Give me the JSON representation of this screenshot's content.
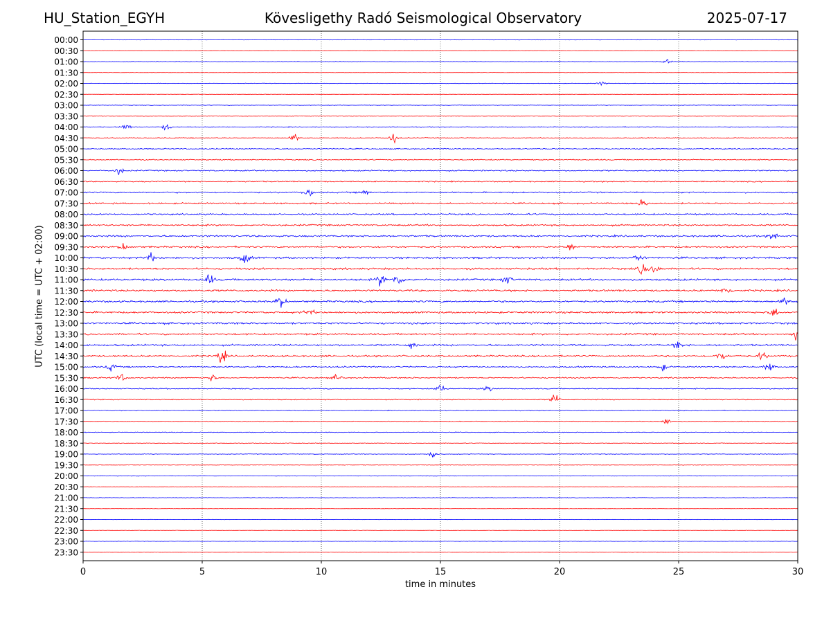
{
  "header": {
    "station": "HU_Station_EGYH",
    "title": "Kövesligethy Radó Seismological Observatory",
    "date": "2025-07-17"
  },
  "colors": {
    "even_row": "#0000ff",
    "odd_row": "#ff0000",
    "axis": "#000000"
  },
  "chart_data": {
    "type": "line",
    "title": "Kövesligethy Radó Seismological Observatory",
    "xlabel": "time in minutes",
    "ylabel": "UTC (local time = UTC + 02:00)",
    "xlim": [
      0,
      30
    ],
    "xticks": [
      0,
      5,
      10,
      15,
      20,
      25,
      30
    ],
    "grid": "vertical dotted at x = 5, 10, 15, 20, 25",
    "rows": [
      "00:00",
      "00:30",
      "01:00",
      "01:30",
      "02:00",
      "02:30",
      "03:00",
      "03:30",
      "04:00",
      "04:30",
      "05:00",
      "05:30",
      "06:00",
      "06:30",
      "07:00",
      "07:30",
      "08:00",
      "08:30",
      "09:00",
      "09:30",
      "10:00",
      "10:30",
      "11:00",
      "11:30",
      "12:00",
      "12:30",
      "13:00",
      "13:30",
      "14:00",
      "14:30",
      "15:00",
      "15:30",
      "16:00",
      "16:30",
      "17:00",
      "17:30",
      "18:00",
      "18:30",
      "19:00",
      "19:30",
      "20:00",
      "20:30",
      "21:00",
      "21:30",
      "22:00",
      "22:30",
      "23:00",
      "23:30"
    ],
    "noise_level": [
      0.15,
      0.15,
      0.2,
      0.15,
      0.2,
      0.15,
      0.2,
      0.25,
      0.35,
      0.35,
      0.45,
      0.45,
      0.55,
      0.5,
      0.6,
      0.65,
      0.65,
      0.7,
      0.75,
      0.75,
      0.8,
      0.8,
      0.8,
      0.8,
      0.8,
      0.8,
      0.8,
      0.75,
      0.75,
      0.7,
      0.6,
      0.55,
      0.45,
      0.4,
      0.35,
      0.3,
      0.3,
      0.25,
      0.25,
      0.2,
      0.2,
      0.2,
      0.2,
      0.15,
      0.15,
      0.15,
      0.15,
      0.15
    ],
    "events": [
      {
        "row": "01:00",
        "x": 24.5,
        "amp": 1.2
      },
      {
        "row": "02:00",
        "x": 21.8,
        "amp": 1.2
      },
      {
        "row": "04:00",
        "x": 1.8,
        "amp": 1.5
      },
      {
        "row": "04:00",
        "x": 3.5,
        "amp": 1.5
      },
      {
        "row": "04:30",
        "x": 8.9,
        "amp": 2.0
      },
      {
        "row": "04:30",
        "x": 13.0,
        "amp": 3.0
      },
      {
        "row": "06:00",
        "x": 1.5,
        "amp": 2.0
      },
      {
        "row": "07:00",
        "x": 9.5,
        "amp": 1.8
      },
      {
        "row": "07:00",
        "x": 11.8,
        "amp": 1.6
      },
      {
        "row": "07:30",
        "x": 23.5,
        "amp": 2.0
      },
      {
        "row": "09:00",
        "x": 29.0,
        "amp": 2.0
      },
      {
        "row": "09:30",
        "x": 1.7,
        "amp": 1.8
      },
      {
        "row": "09:30",
        "x": 20.5,
        "amp": 2.0
      },
      {
        "row": "10:00",
        "x": 2.8,
        "amp": 2.5
      },
      {
        "row": "10:00",
        "x": 6.8,
        "amp": 3.0
      },
      {
        "row": "10:00",
        "x": 23.3,
        "amp": 2.0
      },
      {
        "row": "10:30",
        "x": 23.5,
        "amp": 3.0
      },
      {
        "row": "10:30",
        "x": 24.0,
        "amp": 2.5
      },
      {
        "row": "11:00",
        "x": 5.3,
        "amp": 3.0
      },
      {
        "row": "11:00",
        "x": 12.5,
        "amp": 3.0
      },
      {
        "row": "11:00",
        "x": 13.2,
        "amp": 3.0
      },
      {
        "row": "11:00",
        "x": 17.8,
        "amp": 2.0
      },
      {
        "row": "11:30",
        "x": 27.0,
        "amp": 2.5
      },
      {
        "row": "12:00",
        "x": 8.3,
        "amp": 3.0
      },
      {
        "row": "12:00",
        "x": 29.5,
        "amp": 2.0
      },
      {
        "row": "12:30",
        "x": 9.5,
        "amp": 2.0
      },
      {
        "row": "12:30",
        "x": 29.0,
        "amp": 2.5
      },
      {
        "row": "13:30",
        "x": 29.9,
        "amp": 2.5
      },
      {
        "row": "14:00",
        "x": 13.8,
        "amp": 2.0
      },
      {
        "row": "14:00",
        "x": 25.0,
        "amp": 2.5
      },
      {
        "row": "14:30",
        "x": 5.8,
        "amp": 4.0
      },
      {
        "row": "14:30",
        "x": 26.8,
        "amp": 2.5
      },
      {
        "row": "14:30",
        "x": 28.5,
        "amp": 2.0
      },
      {
        "row": "15:00",
        "x": 1.2,
        "amp": 2.0
      },
      {
        "row": "15:00",
        "x": 24.3,
        "amp": 2.0
      },
      {
        "row": "15:00",
        "x": 28.8,
        "amp": 2.0
      },
      {
        "row": "15:30",
        "x": 1.6,
        "amp": 2.0
      },
      {
        "row": "15:30",
        "x": 5.4,
        "amp": 2.0
      },
      {
        "row": "15:30",
        "x": 10.7,
        "amp": 2.0
      },
      {
        "row": "16:00",
        "x": 15.0,
        "amp": 2.0
      },
      {
        "row": "16:00",
        "x": 17.0,
        "amp": 1.5
      },
      {
        "row": "16:30",
        "x": 19.8,
        "amp": 3.0
      },
      {
        "row": "17:30",
        "x": 24.5,
        "amp": 1.5
      },
      {
        "row": "19:00",
        "x": 14.7,
        "amp": 1.8
      }
    ]
  }
}
